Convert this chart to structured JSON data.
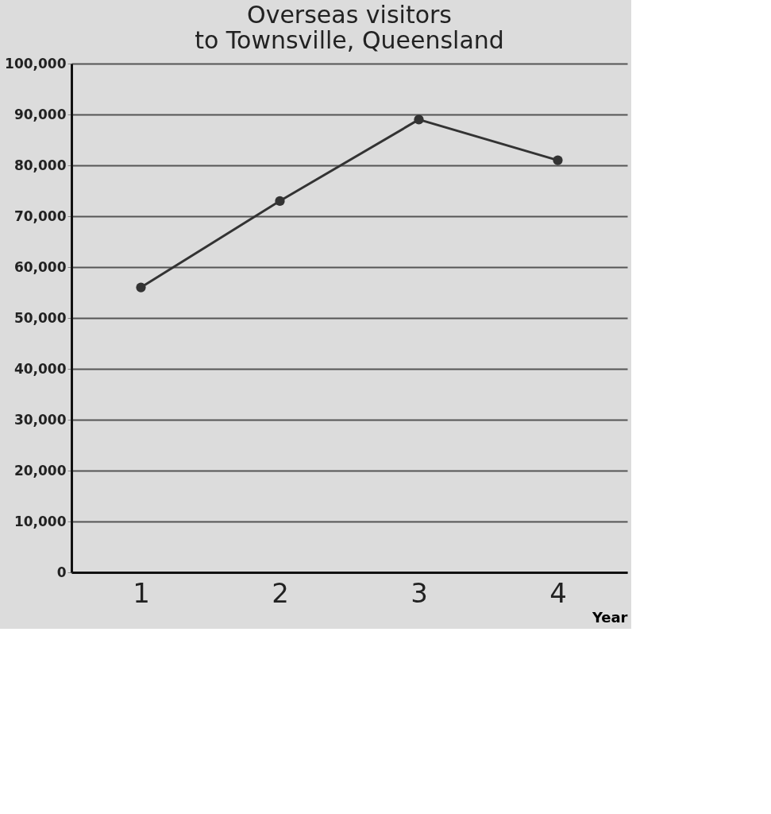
{
  "chart_data": {
    "type": "line",
    "title": [
      "Overseas visitors",
      "to Townsville, Queensland"
    ],
    "xlabel": "Year",
    "categories": [
      "1",
      "2",
      "3",
      "4"
    ],
    "series": [
      {
        "color": "#333333",
        "values": [
          56000,
          73000,
          89000,
          81000
        ]
      }
    ],
    "ylim": [
      0,
      100000
    ],
    "yticks": [
      0,
      {
        "value": 10000,
        "label": "10,000"
      },
      {
        "value": 20000,
        "label": "20,000"
      },
      {
        "value": 30000,
        "label": "30,000"
      },
      {
        "value": 40000,
        "label": "40,000"
      },
      {
        "value": 50000,
        "label": "50,000"
      },
      {
        "value": 60000,
        "label": "60,000"
      },
      {
        "value": 70000,
        "label": "70,000"
      },
      {
        "value": 80000,
        "label": "80,000"
      },
      {
        "value": 90000,
        "label": "90,000"
      },
      {
        "value": 100000,
        "label": "100,000"
      }
    ],
    "grid": "y",
    "marker": "circle",
    "line_style": "solid"
  }
}
